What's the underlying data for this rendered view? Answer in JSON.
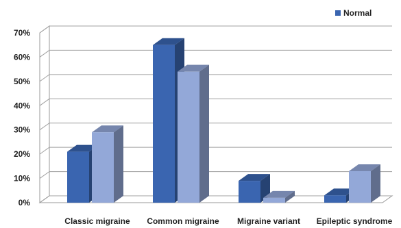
{
  "chart_data": {
    "type": "bar",
    "categories": [
      "Classic migraine",
      "Common migraine",
      "Migraine variant",
      "Epileptic syndrome"
    ],
    "series": [
      {
        "name": "Normal",
        "values": [
          21,
          65,
          9,
          3
        ],
        "color": "#3a65b0"
      },
      {
        "values": [
          29,
          54,
          2,
          13
        ],
        "color": "#93a8d8"
      }
    ],
    "yticks": [
      "0%",
      "10%",
      "20%",
      "30%",
      "40%",
      "50%",
      "60%",
      "70%"
    ],
    "ylim": [
      0,
      70
    ],
    "grid": true,
    "legend_position": "top-right",
    "title": "",
    "xlabel": "",
    "ylabel": ""
  }
}
